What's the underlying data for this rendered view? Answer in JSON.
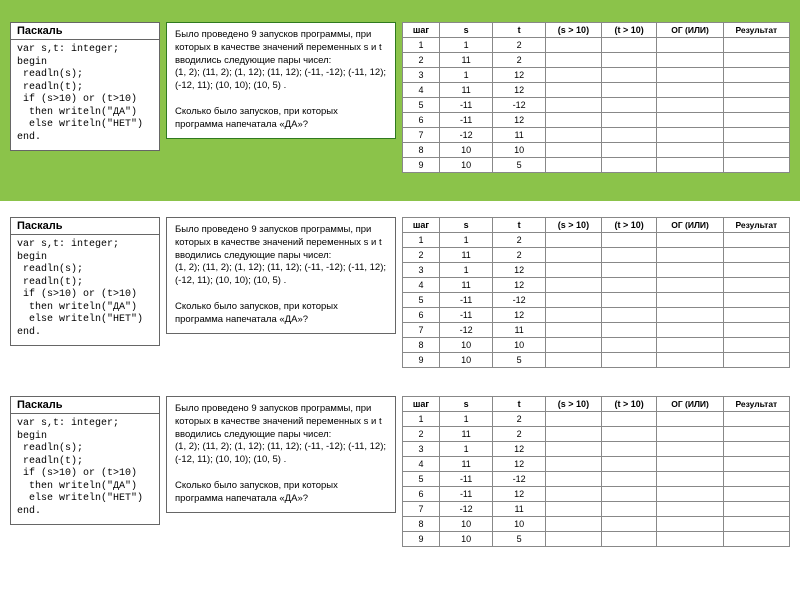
{
  "band_color": "#8bc34a",
  "code_title": "Паскаль",
  "code_lines": "var s,t: integer;\nbegin\n readln(s);\n readln(t);\n if (s>10) or (t>10)\n  then writeln(\"ДА\")\n  else writeln(\"НЕТ\")\nend.",
  "desc_p1": "Было проведено 9 запусков программы, при которых в качестве значений переменных s и t вводились следующие пары чисел:",
  "desc_pairs": "(1, 2); (11, 2); (1, 12); (11, 12); (-11, -12); (-11, 12); (-12, 11); (10, 10); (10, 5) .",
  "desc_p2": "Сколько было запусков, при которых программа напечатала «ДА»?",
  "headers": {
    "step": "шаг",
    "s": "s",
    "t": "t",
    "s10": "(s > 10)",
    "t10": "(t > 10)",
    "or": "ОГ (ИЛИ)",
    "res": "Результат"
  },
  "rows": [
    {
      "n": "1",
      "s": "1",
      "t": "2"
    },
    {
      "n": "2",
      "s": "11",
      "t": "2"
    },
    {
      "n": "3",
      "s": "1",
      "t": "12"
    },
    {
      "n": "4",
      "s": "11",
      "t": "12"
    },
    {
      "n": "5",
      "s": "-11",
      "t": "-12"
    },
    {
      "n": "6",
      "s": "-11",
      "t": "12"
    },
    {
      "n": "7",
      "s": "-12",
      "t": "11"
    },
    {
      "n": "8",
      "s": "10",
      "t": "10"
    },
    {
      "n": "9",
      "s": "10",
      "t": "5"
    }
  ]
}
